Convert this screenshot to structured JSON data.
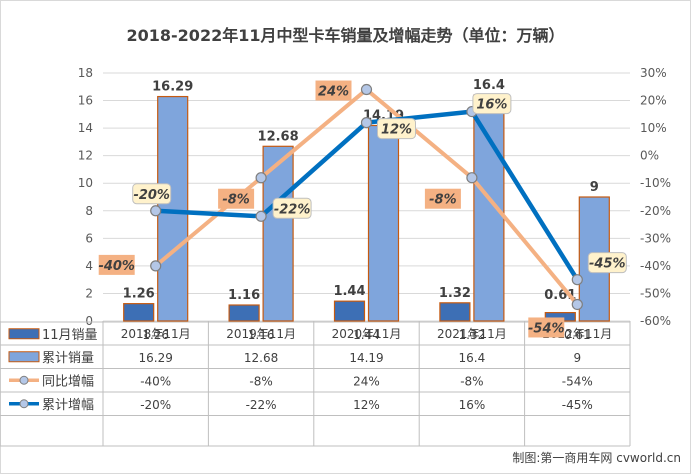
{
  "chart_data": {
    "type": "bar",
    "title": "2018-2022年11月中型卡车销量及增幅走势（单位：万辆）",
    "categories": [
      "2018年11月",
      "2019年11月",
      "2020年11月",
      "2021年11月",
      "2022年11月"
    ],
    "series": [
      {
        "name": "11月销量",
        "kind": "bar",
        "axis": "left",
        "values": [
          1.26,
          1.16,
          1.44,
          1.32,
          0.61
        ],
        "labels": [
          "1.26",
          "1.16",
          "1.44",
          "1.32",
          "0.61"
        ],
        "table": [
          "1.26",
          "1.16",
          "1.44",
          "1.32",
          "0.61"
        ],
        "color": "#3d6fb5"
      },
      {
        "name": "累计销量",
        "kind": "bar",
        "axis": "left",
        "values": [
          16.29,
          12.68,
          14.19,
          16.4,
          9
        ],
        "labels": [
          "16.29",
          "12.68",
          "14.19",
          "16.4",
          "9"
        ],
        "table": [
          "16.29",
          "12.68",
          "14.19",
          "16.4",
          "9"
        ],
        "color": "#7fa5dc"
      },
      {
        "name": "同比增幅",
        "kind": "line",
        "axis": "right",
        "values": [
          -40,
          -8,
          24,
          -8,
          -54
        ],
        "labels": [
          "-40%",
          "-8%",
          "24%",
          "-8%",
          "-54%"
        ],
        "table": [
          "-40%",
          "-8%",
          "24%",
          "-8%",
          "-54%"
        ],
        "color": "#f4b183"
      },
      {
        "name": "累计增幅",
        "kind": "line",
        "axis": "right",
        "values": [
          -20,
          -22,
          12,
          16,
          -45
        ],
        "labels": [
          "-20%",
          "-22%",
          "12%",
          "16%",
          "-45%"
        ],
        "table": [
          "-20%",
          "-22%",
          "12%",
          "16%",
          "-45%"
        ],
        "color": "#0070c0"
      }
    ],
    "ylim": [
      0,
      18
    ],
    "yticks": [
      "0",
      "2",
      "4",
      "6",
      "8",
      "10",
      "12",
      "14",
      "16",
      "18"
    ],
    "y2lim": [
      -60,
      30
    ],
    "y2ticks": [
      "-60%",
      "-50%",
      "-40%",
      "-30%",
      "-20%",
      "-10%",
      "0%",
      "10%",
      "20%",
      "30%"
    ],
    "grid": true,
    "legend": "data-table"
  },
  "credit": "制图:第一商用车网 cvworld.cn"
}
